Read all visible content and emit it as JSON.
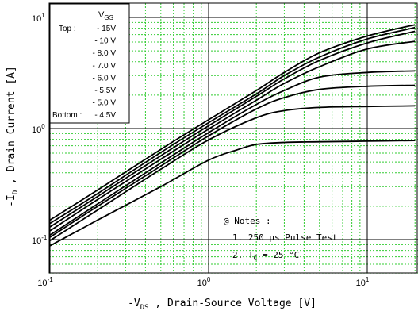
{
  "chart_data": {
    "type": "line",
    "xscale": "log",
    "yscale": "log",
    "xlim": [
      0.1,
      20
    ],
    "ylim": [
      0.05,
      12
    ],
    "xlabel": {
      "main": "-V",
      "sub": "DS",
      "rest": " , Drain-Source Voltage  [V]"
    },
    "ylabel": {
      "main": "-I",
      "sub": "D",
      "rest": " , Drain Current  [A]"
    },
    "xticks": [
      {
        "base": "10",
        "exp": "-1"
      },
      {
        "base": "10",
        "exp": "0"
      },
      {
        "base": "10",
        "exp": "1"
      }
    ],
    "yticks": [
      {
        "base": "10",
        "exp": "-1"
      },
      {
        "base": "10",
        "exp": "0"
      },
      {
        "base": "10",
        "exp": "1"
      }
    ],
    "legend": {
      "header_main": "V",
      "header_sub": "GS",
      "top_label": "Top :",
      "bottom_label": "Bottom :",
      "entries": [
        "- 15V",
        "- 10 V",
        "- 8.0 V",
        "- 7.0 V",
        "- 6.0 V",
        "- 5.5V",
        "- 5.0 V",
        "- 4.5V"
      ]
    },
    "notes": {
      "title": "@ Notes :",
      "line1": "1. 250 μs Pulse Test",
      "line2_prefix": "2. T",
      "line2_sub": "C",
      "line2_rest": " = 25 °C"
    },
    "series": [
      {
        "name": "- 15V",
        "x": [
          0.1,
          0.2,
          0.5,
          1,
          2,
          3,
          5,
          10,
          20
        ],
        "y": [
          0.15,
          0.28,
          0.65,
          1.2,
          2.2,
          3.2,
          4.8,
          6.8,
          8.6
        ]
      },
      {
        "name": "- 10 V",
        "x": [
          0.1,
          0.2,
          0.5,
          1,
          2,
          3,
          5,
          10,
          20
        ],
        "y": [
          0.14,
          0.26,
          0.61,
          1.13,
          2.05,
          3.0,
          4.4,
          6.4,
          8.1
        ]
      },
      {
        "name": "- 8.0 V",
        "x": [
          0.1,
          0.2,
          0.5,
          1,
          2,
          3,
          5,
          10,
          20
        ],
        "y": [
          0.13,
          0.245,
          0.57,
          1.06,
          1.95,
          2.8,
          4.1,
          5.9,
          7.5
        ]
      },
      {
        "name": "- 7.0 V",
        "x": [
          0.1,
          0.2,
          0.5,
          1,
          2,
          3,
          5,
          10,
          20
        ],
        "y": [
          0.12,
          0.23,
          0.53,
          0.99,
          1.8,
          2.55,
          3.6,
          5.2,
          6.1
        ]
      },
      {
        "name": "- 6.0 V",
        "x": [
          0.1,
          0.2,
          0.5,
          1,
          2,
          3,
          5,
          10,
          20
        ],
        "y": [
          0.11,
          0.21,
          0.49,
          0.92,
          1.65,
          2.2,
          2.9,
          3.2,
          3.3
        ]
      },
      {
        "name": "- 5.5V",
        "x": [
          0.1,
          0.2,
          0.5,
          1,
          2,
          3,
          5,
          10,
          20
        ],
        "y": [
          0.105,
          0.2,
          0.46,
          0.86,
          1.5,
          1.9,
          2.25,
          2.4,
          2.45
        ]
      },
      {
        "name": "- 5.0 V",
        "x": [
          0.1,
          0.2,
          0.5,
          1,
          2,
          3,
          5,
          10,
          20
        ],
        "y": [
          0.098,
          0.185,
          0.43,
          0.79,
          1.25,
          1.45,
          1.55,
          1.58,
          1.6
        ]
      },
      {
        "name": "- 4.5V",
        "x": [
          0.1,
          0.2,
          0.5,
          1,
          1.5,
          2,
          3,
          5,
          10,
          20
        ],
        "y": [
          0.088,
          0.15,
          0.3,
          0.52,
          0.64,
          0.72,
          0.75,
          0.76,
          0.77,
          0.78
        ]
      }
    ]
  },
  "colors": {
    "grid_minor": "#33cc33",
    "grid_major": "#000000",
    "curve": "#000000",
    "background": "#ffffff"
  }
}
